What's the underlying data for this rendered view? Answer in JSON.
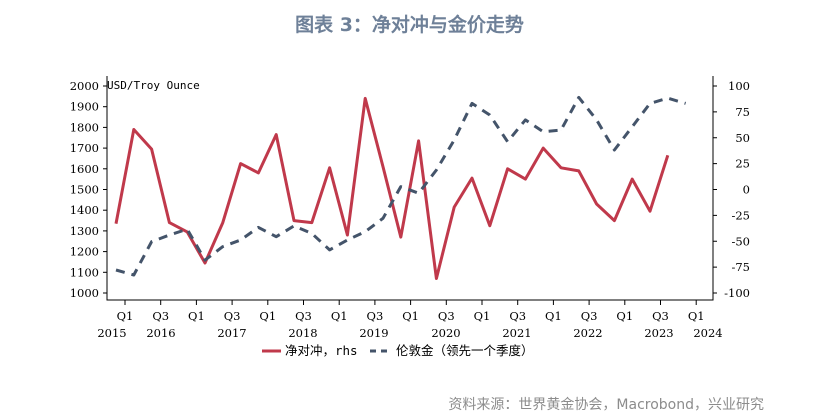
{
  "title": "图表 3：净对冲与金价走势",
  "source": "资料来源：世界黄金协会，Macrobond，兴业研究",
  "chart_data": {
    "type": "line",
    "title": "图表 3：净对冲与金价走势",
    "left_axis": {
      "label": "USD/Troy Ounce",
      "ylim": [
        1000,
        2000
      ],
      "ticks": [
        1000,
        1100,
        1200,
        1300,
        1400,
        1500,
        1600,
        1700,
        1800,
        1900,
        2000
      ]
    },
    "right_axis": {
      "ylim": [
        -100,
        100
      ],
      "ticks": [
        -100,
        -75,
        -50,
        -25,
        0,
        25,
        50,
        75,
        100
      ]
    },
    "x_tick_labels": [
      "Q1",
      "Q3",
      "Q1",
      "Q3",
      "Q1",
      "Q3",
      "Q1",
      "Q3",
      "Q1",
      "Q3",
      "Q1",
      "Q3",
      "Q1",
      "Q3",
      "Q1",
      "Q3",
      "Q1"
    ],
    "x_year_labels": [
      "2015",
      "2016",
      "2017",
      "2018",
      "2019",
      "2020",
      "2021",
      "2022",
      "2023",
      "2024"
    ],
    "grid": false,
    "legend_position": "bottom",
    "series": [
      {
        "name": "净对冲，rhs",
        "axis": "right",
        "color": "#c0394b",
        "style": "solid",
        "values": [
          -33,
          58,
          39,
          -32,
          -41,
          -71,
          -32,
          25,
          16,
          53,
          -30,
          -32,
          21,
          -44,
          88,
          22,
          -46,
          47,
          -86,
          -17,
          11,
          -35,
          20,
          10,
          40,
          21,
          18,
          -14,
          -30,
          10,
          -21,
          33,
          null
        ]
      },
      {
        "name": "伦敦金（领先一个季度）",
        "axis": "left",
        "color": "#44546a",
        "style": "dashed",
        "values": [
          1111,
          1087,
          1248,
          1280,
          1308,
          1159,
          1224,
          1256,
          1317,
          1272,
          1324,
          1288,
          1208,
          1256,
          1296,
          1361,
          1514,
          1482,
          1594,
          1739,
          1916,
          1860,
          1731,
          1836,
          1779,
          1787,
          1945,
          1836,
          1691,
          1803,
          1916,
          1941,
          1916
        ]
      }
    ]
  }
}
